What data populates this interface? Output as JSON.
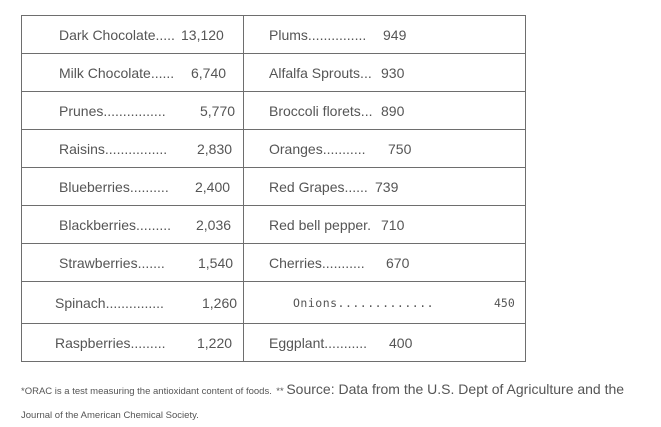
{
  "rows": [
    {
      "left_name": "Dark Chocolate.....",
      "left_value": "13,120",
      "right_name": "Plums...............",
      "right_value": "949"
    },
    {
      "left_name": "Milk Chocolate......",
      "left_value": "6,740",
      "right_name": "Alfalfa Sprouts...",
      "right_value": "930"
    },
    {
      "left_name": "Prunes................",
      "left_value": "5,770",
      "right_name": "Broccoli florets...",
      "right_value": "890"
    },
    {
      "left_name": "Raisins................",
      "left_value": "2,830",
      "right_name": "Oranges...........",
      "right_value": "750"
    },
    {
      "left_name": "Blueberries..........",
      "left_value": "2,400",
      "right_name": "Red Grapes......",
      "right_value": "739"
    },
    {
      "left_name": "Blackberries.........",
      "left_value": "2,036",
      "right_name": "Red bell pepper.",
      "right_value": "710"
    },
    {
      "left_name": "Strawberries.......",
      "left_value": "1,540",
      "right_name": "Cherries...........",
      "right_value": "670"
    },
    {
      "left_name": "Spinach...............",
      "left_value": "1,260",
      "right_name": "Onions.............",
      "right_value": "450"
    },
    {
      "left_name": "Raspberries.........",
      "left_value": "1,220",
      "right_name": "Eggplant...........",
      "right_value": "400"
    }
  ],
  "footnote": {
    "part1": "*ORAC is a test measuring the antioxidant content of foods.",
    "part2": "** ",
    "part3": "Source: Data from the U.S. Dept of Agriculture and the",
    "part4": " Journal of the American Chemical Society."
  }
}
